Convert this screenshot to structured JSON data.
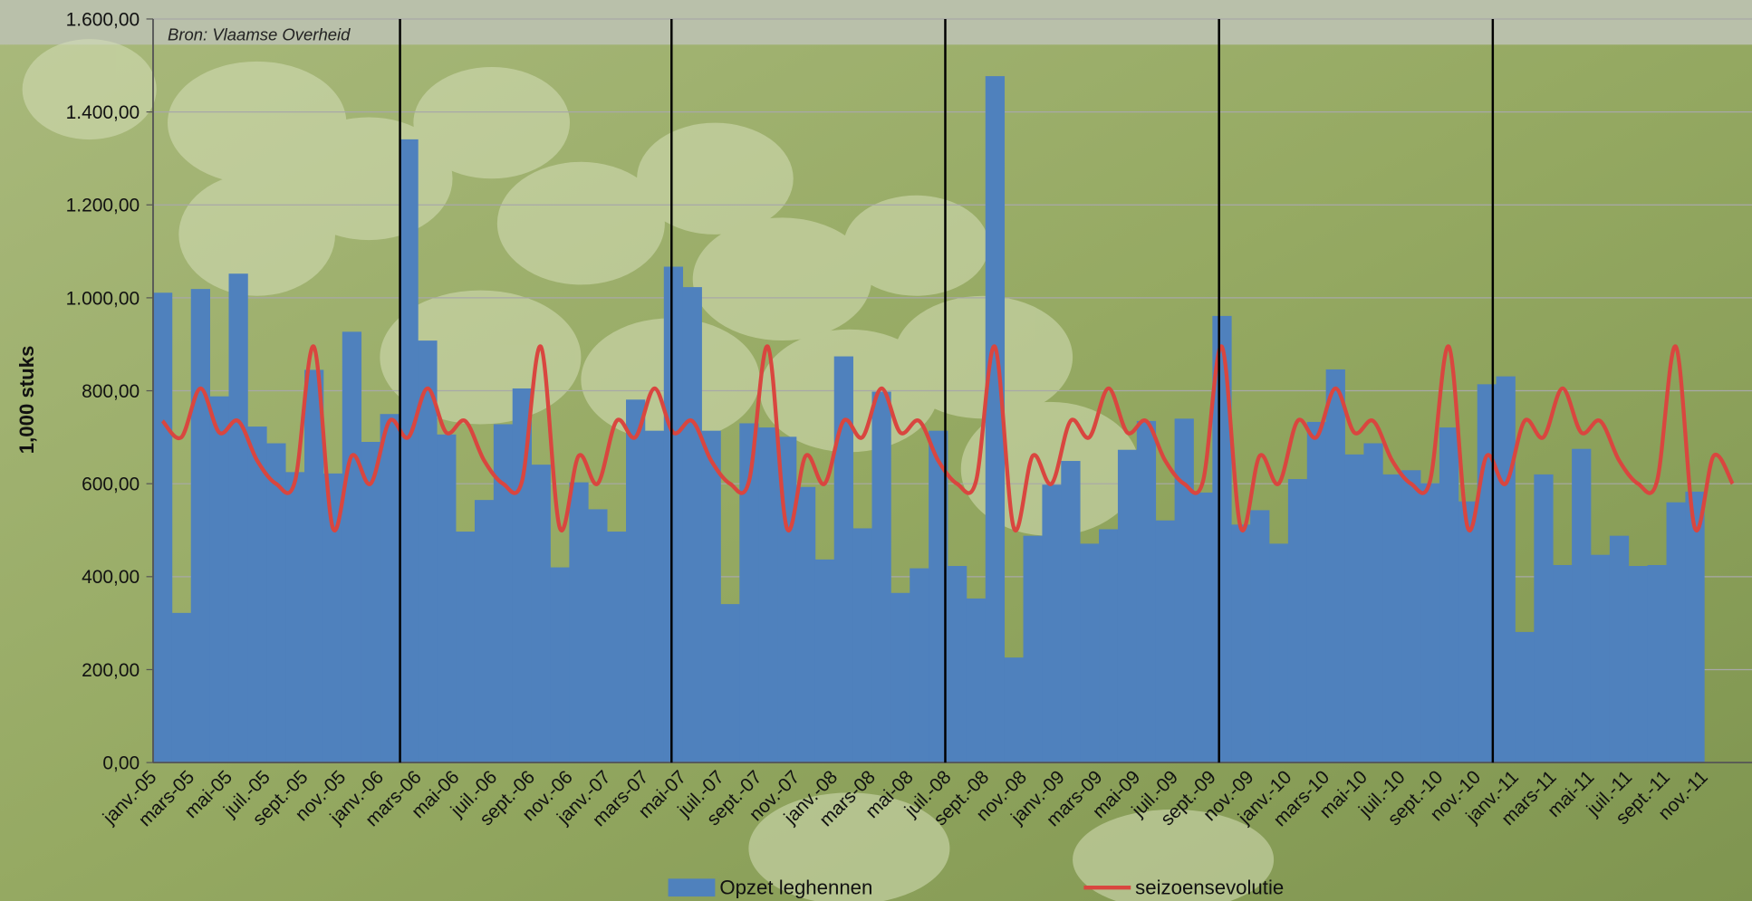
{
  "chart_data": {
    "type": "bar",
    "source": "Bron: Vlaamse Overheid",
    "y_label": "1,000 stuks",
    "categories": [
      "janv.-05",
      null,
      "mars-05",
      null,
      "mai-05",
      null,
      "juil.-05",
      null,
      "sept.-05",
      null,
      "nov.-05",
      null,
      "janv.-06",
      null,
      "mars-06",
      null,
      "mai-06",
      null,
      "juil.-06",
      null,
      "sept.-06",
      null,
      "nov.-06",
      null,
      "janv.-07",
      null,
      "mars-07",
      null,
      "mai-07",
      null,
      "juil.-07",
      null,
      "sept.-07",
      null,
      "nov.-07",
      null,
      "janv.-08",
      null,
      "mars-08",
      null,
      "mai-08",
      null,
      "juil.-08",
      null,
      "sept.-08",
      null,
      "nov.-08",
      null,
      "janv.-09",
      null,
      "mars-09",
      null,
      "mai-09",
      null,
      "juil.-09",
      null,
      "sept.-09",
      null,
      "nov.-09",
      null,
      "janv.-10",
      null,
      "mars-10",
      null,
      "mai-10",
      null,
      "juil.-10",
      null,
      "sept.-10",
      null,
      "nov.-10",
      null,
      "janv.-11",
      null,
      "mars-11",
      null,
      "mai-11",
      null,
      "juil.-11",
      null,
      "sept.-11",
      null,
      "nov.-11",
      null
    ],
    "series": [
      {
        "name": "Opzet leghennen",
        "type": "bar",
        "color": "#4f81bd",
        "values": [
          1011,
          322,
          1019,
          788,
          1052,
          723,
          687,
          625,
          845,
          622,
          927,
          690,
          750,
          1341,
          908,
          706,
          497,
          565,
          728,
          805,
          641,
          420,
          603,
          545,
          497,
          781,
          714,
          1067,
          1023,
          714,
          341,
          730,
          721,
          701,
          593,
          437,
          874,
          504,
          798,
          365,
          418,
          714,
          423,
          353,
          1477,
          226,
          488,
          598,
          649,
          471,
          502,
          673,
          735,
          521,
          740,
          581,
          961,
          512,
          543,
          471,
          610,
          733,
          846,
          663,
          687,
          620,
          629,
          601,
          721,
          562,
          814,
          831,
          281,
          620,
          425,
          675,
          447,
          488,
          423,
          425,
          560,
          583,
          null,
          null
        ]
      },
      {
        "name": "seizoensevolutie",
        "type": "line",
        "color": "#d9463f",
        "values": [
          735,
          700,
          805,
          710,
          735,
          650,
          600,
          605,
          895,
          505,
          660,
          600,
          735,
          700,
          805,
          710,
          735,
          650,
          600,
          605,
          895,
          505,
          660,
          600,
          735,
          700,
          805,
          710,
          735,
          650,
          600,
          605,
          895,
          505,
          660,
          600,
          735,
          700,
          805,
          710,
          735,
          650,
          600,
          605,
          895,
          505,
          660,
          600,
          735,
          700,
          805,
          710,
          735,
          650,
          600,
          605,
          895,
          505,
          660,
          600,
          735,
          700,
          805,
          710,
          735,
          650,
          600,
          605,
          895,
          505,
          660,
          600,
          735,
          700,
          805,
          710,
          735,
          650,
          600,
          605,
          895,
          505,
          660,
          600
        ]
      }
    ],
    "ylim": [
      0,
      1600
    ],
    "yticks": [
      {
        "value": 0,
        "label": "0,00"
      },
      {
        "value": 200,
        "label": "200,00"
      },
      {
        "value": 400,
        "label": "400,00"
      },
      {
        "value": 600,
        "label": "600,00"
      },
      {
        "value": 800,
        "label": "800,00"
      },
      {
        "value": 1000,
        "label": "1.000,00"
      },
      {
        "value": 1200,
        "label": "1.200,00"
      },
      {
        "value": 1400,
        "label": "1.400,00"
      },
      {
        "value": 1600,
        "label": "1.600,00"
      }
    ],
    "grid": true
  }
}
